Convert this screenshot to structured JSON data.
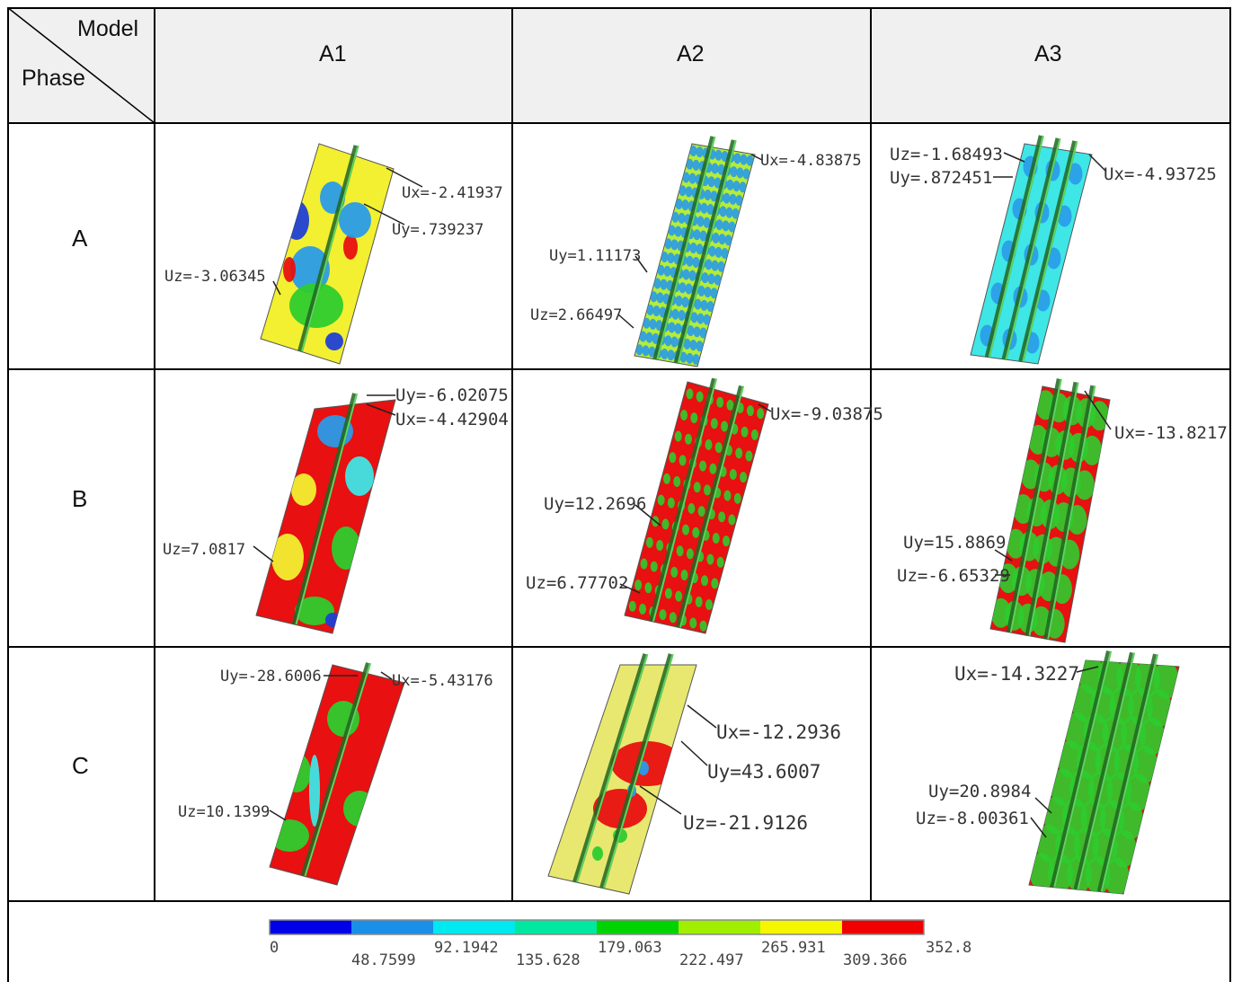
{
  "header": {
    "corner_model": "Model",
    "corner_phase": "Phase",
    "columns": [
      "A1",
      "A2",
      "A3"
    ]
  },
  "rows": [
    {
      "phase": "A",
      "cells": [
        {
          "labels": [
            "Ux=-2.41937",
            "Uy=.739237",
            "Uz=-3.06345"
          ]
        },
        {
          "labels": [
            "Ux=-4.83875",
            "Uy=1.11173",
            "Uz=2.66497"
          ]
        },
        {
          "labels": [
            "Uz=-1.68493",
            "Uy=.872451",
            "Ux=-4.93725"
          ]
        }
      ]
    },
    {
      "phase": "B",
      "cells": [
        {
          "labels": [
            "Uy=-6.02075",
            "Ux=-4.42904",
            "Uz=7.0817"
          ]
        },
        {
          "labels": [
            "Ux=-9.03875",
            "Uy=12.2696",
            "Uz=6.77702"
          ]
        },
        {
          "labels": [
            "Ux=-13.8217",
            "Uy=15.8869",
            "Uz=-6.65329"
          ]
        }
      ]
    },
    {
      "phase": "C",
      "cells": [
        {
          "labels": [
            "Uy=-28.6006",
            "Ux=-5.43176",
            "Uz=10.1399"
          ]
        },
        {
          "labels": [
            "Ux=-12.2936",
            "Uy=43.6007",
            "Uz=-21.9126"
          ]
        },
        {
          "labels": [
            "Ux=-14.3227",
            "Uy=20.8984",
            "Uz=-8.00361"
          ]
        }
      ]
    }
  ],
  "legend": {
    "values": [
      "0",
      "48.7599",
      "92.1942",
      "135.628",
      "179.063",
      "222.497",
      "265.931",
      "309.366",
      "352.8"
    ],
    "colors": [
      "#0000e8",
      "#1a8fe8",
      "#00e8f0",
      "#00e8a0",
      "#00d400",
      "#a0ee00",
      "#f6f600",
      "#f00000"
    ]
  },
  "colors": {
    "blue": "#1f3fd6",
    "lightblue": "#2a9be8",
    "cyan": "#3fe6e6",
    "teal": "#2ee0a6",
    "green": "#2ecc2e",
    "yellowgreen": "#b4ec3a",
    "yellow": "#f2f030",
    "red": "#e81010",
    "header_bg": "#f0f0f0"
  }
}
